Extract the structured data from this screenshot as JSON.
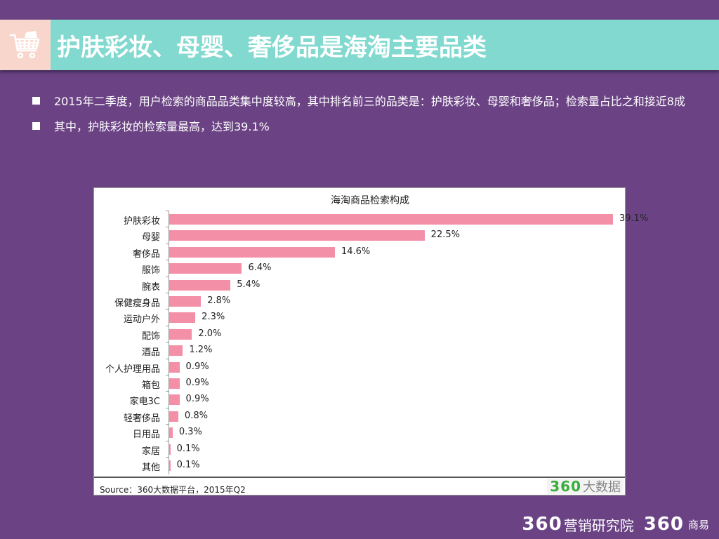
{
  "header": {
    "icon": "shopping-cart-icon",
    "title": "护肤彩妆、母婴、奢侈品是海淘主要品类"
  },
  "bullets": [
    {
      "text": "2015年二季度，用户检索的商品品类集中度较高，其中排名前三的品类是：护肤彩妆、母婴和奢侈品；检索量占比之和接近8成"
    },
    {
      "text": "其中，护肤彩妆的检索量最高，达到39.1%"
    }
  ],
  "chart": {
    "title": "海淘商品检索构成",
    "source": "Source：360大数据平台，2015年Q2",
    "brand_num": "360",
    "brand_cn": "大数据",
    "bar_color": "#f48fa8"
  },
  "chart_data": {
    "type": "bar",
    "orientation": "horizontal",
    "title": "海淘商品检索构成",
    "categories": [
      "护肤彩妆",
      "母婴",
      "奢侈品",
      "服饰",
      "腕表",
      "保健瘦身品",
      "运动户外",
      "配饰",
      "酒品",
      "个人护理用品",
      "箱包",
      "家电3C",
      "轻奢侈品",
      "日用品",
      "家居",
      "其他"
    ],
    "values": [
      39.1,
      22.5,
      14.6,
      6.4,
      5.4,
      2.8,
      2.3,
      2.0,
      1.2,
      0.9,
      0.9,
      0.9,
      0.8,
      0.3,
      0.1,
      0.1
    ],
    "value_labels": [
      "39.1%",
      "22.5%",
      "14.6%",
      "6.4%",
      "5.4%",
      "2.8%",
      "2.3%",
      "2.0%",
      "1.2%",
      "0.9%",
      "0.9%",
      "0.9%",
      "0.8%",
      "0.3%",
      "0.1%",
      "0.1%"
    ],
    "xlabel": "",
    "ylabel": "",
    "unit": "%",
    "grid": false,
    "legend": null,
    "source": "Source：360大数据平台，2015年Q2"
  },
  "footer": {
    "brand1_num": "360",
    "brand1_cn": "营销研究院",
    "brand2_num": "360",
    "brand2_cn": "商易"
  },
  "colors": {
    "background": "#6b4385",
    "title_bar": "#82d9cf",
    "icon_box": "#f8d6cb",
    "bar": "#f48fa8",
    "brand_green": "#3aae3a"
  }
}
